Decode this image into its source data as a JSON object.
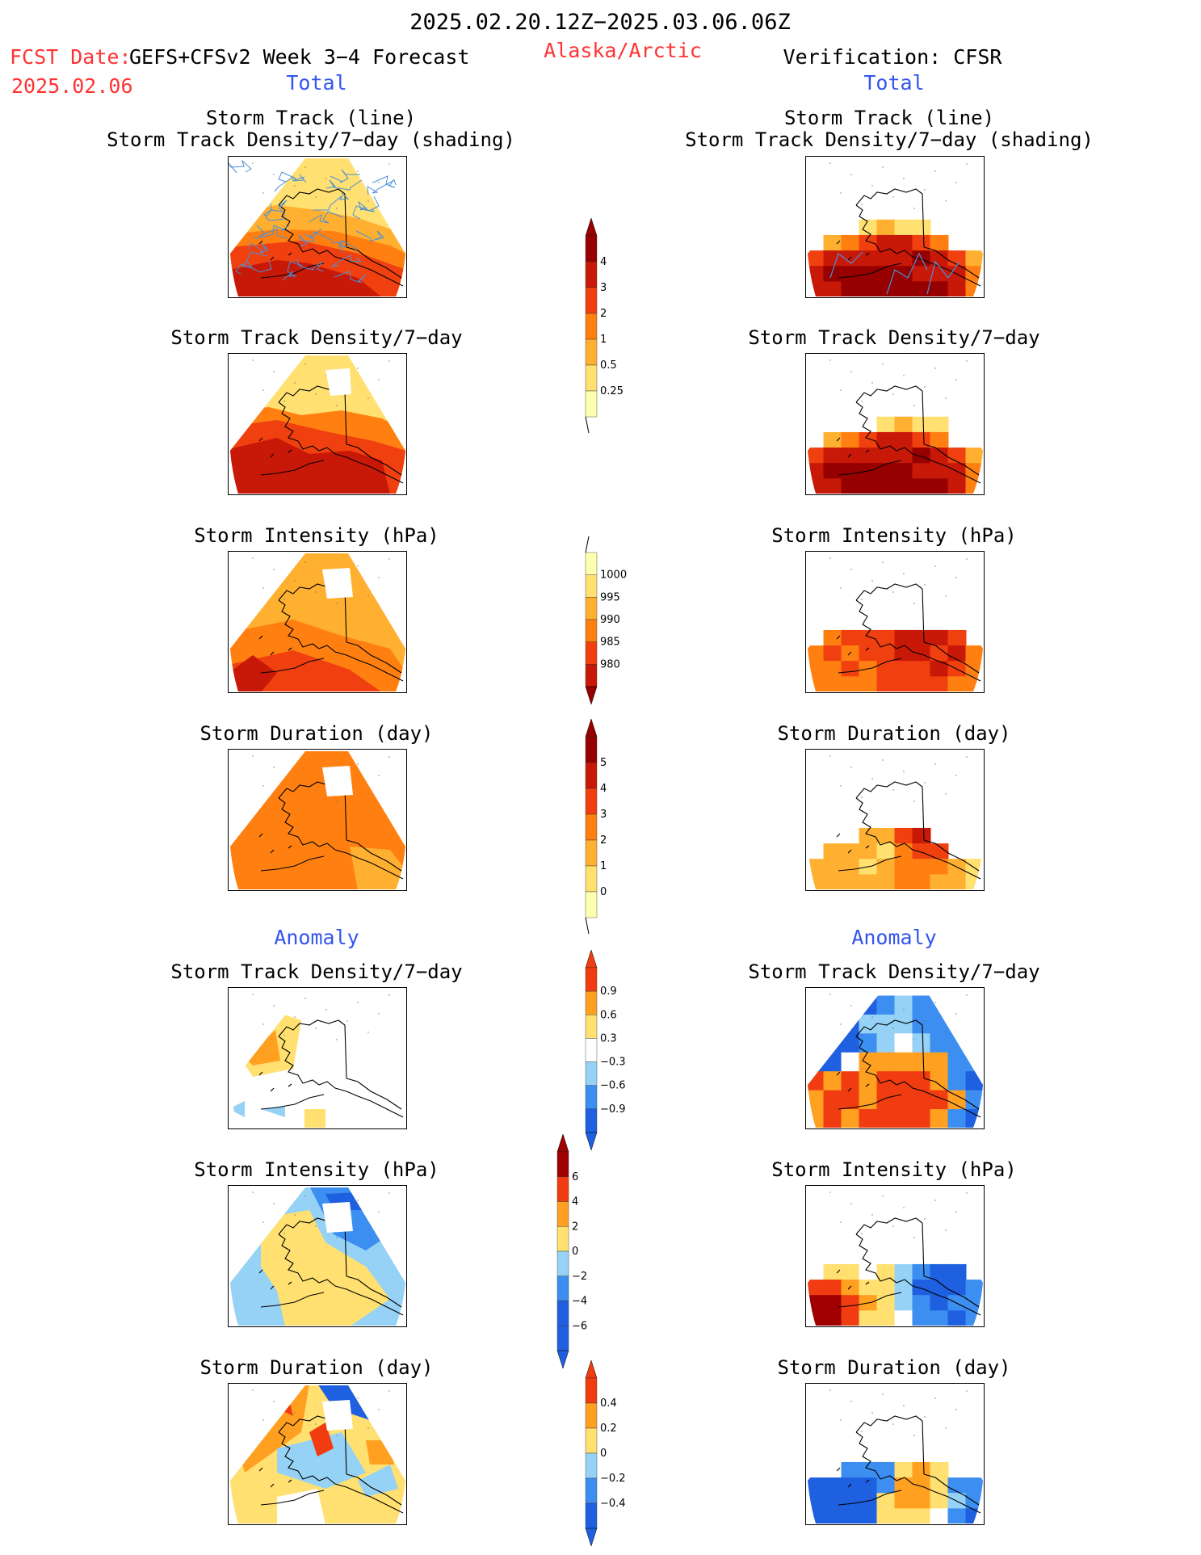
{
  "header": {
    "date_range": "2025.02.20.12Z−2025.03.06.06Z",
    "fcst_label": "FCST Date:",
    "fcst_model": "GEFS+CFSv2 Week 3−4 Forecast",
    "fcst_date": "2025.02.06",
    "region": "Alaska/Arctic",
    "verification": "Verification: CFSR",
    "left_total": "Total",
    "right_total": "Total",
    "left_anomaly": "Anomaly",
    "right_anomaly": "Anomaly"
  },
  "panels": {
    "track_line": "Storm Track (line)",
    "track_shading": "Storm Track Density/7−day (shading)",
    "density": "Storm Track Density/7−day",
    "intensity": "Storm Intensity (hPa)",
    "duration": "Storm Duration (day)"
  },
  "colorbars": {
    "density": [
      "4",
      "3",
      "2",
      "1",
      "0.5",
      "0.25"
    ],
    "intensity": [
      "1000",
      "995",
      "990",
      "985",
      "980"
    ],
    "duration": [
      "5",
      "4",
      "3",
      "2",
      "1",
      "0"
    ],
    "density_anom": [
      "0.9",
      "0.6",
      "0.3",
      "−0.3",
      "−0.6",
      "−0.9"
    ],
    "intensity_anom": [
      "6",
      "4",
      "2",
      "0",
      "−2",
      "−4",
      "−6"
    ],
    "duration_anom": [
      "0.4",
      "0.2",
      "0",
      "−0.2",
      "−0.4"
    ]
  },
  "palette": {
    "warm": [
      "#ffffb0",
      "#ffe070",
      "#ffb030",
      "#ff8010",
      "#f04010",
      "#c81808",
      "#960000"
    ],
    "diverging": [
      "#1e60e0",
      "#3c8ef0",
      "#96d2f5",
      "#ffffff",
      "#ffe070",
      "#ffa020",
      "#f03c10",
      "#a00000"
    ],
    "track_line": "#4a90d8"
  }
}
